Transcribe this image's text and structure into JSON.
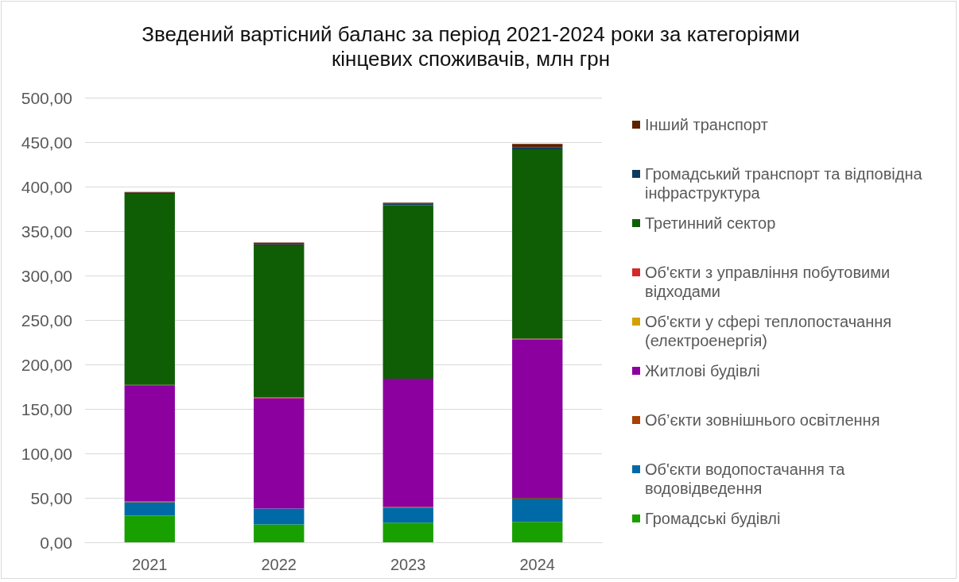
{
  "chart_data": {
    "type": "bar",
    "title": "Зведений вартісний баланс за період 2021-2024 роки за категоріями кінцевих споживачів, млн грн",
    "categories": [
      "2021",
      "2022",
      "2023",
      "2024"
    ],
    "stacked": true,
    "series": [
      {
        "name": "Громадські будівлі",
        "color": "#18a000",
        "values": [
          30,
          20,
          22,
          23
        ]
      },
      {
        "name": "Об'єкти водопостачання та водовідведення",
        "color": "#006aa6",
        "values": [
          15,
          18,
          17,
          26
        ]
      },
      {
        "name": "Об’єкти зовнішнього освітлення",
        "color": "#a84000",
        "values": [
          1,
          0,
          1,
          1
        ]
      },
      {
        "name": "Житлові будівлі",
        "color": "#8c00a0",
        "values": [
          130,
          124,
          144,
          178
        ]
      },
      {
        "name": "Об'єкти у сфері теплопостачання (електроенергія)",
        "color": "#d4a000",
        "values": [
          0,
          0,
          0,
          0
        ]
      },
      {
        "name": "Об'єкти з управління побутовими відходами",
        "color": "#d42a2a",
        "values": [
          1,
          1,
          0,
          1
        ]
      },
      {
        "name": "Третинний сектор",
        "color": "#0f5e05",
        "values": [
          215,
          171,
          195,
          213
        ]
      },
      {
        "name": "Громадський транспорт та відповідна інфраструктура",
        "color": "#0c3b5e",
        "values": [
          1,
          1,
          2,
          2
        ]
      },
      {
        "name": "Інший транспорт",
        "color": "#5b2200",
        "values": [
          1,
          2,
          1,
          4
        ]
      }
    ],
    "ylim": [
      0,
      500
    ],
    "yticks": [
      {
        "value": 0,
        "label": "0,00"
      },
      {
        "value": 50,
        "label": "50,00"
      },
      {
        "value": 100,
        "label": "100,00"
      },
      {
        "value": 150,
        "label": "150,00"
      },
      {
        "value": 200,
        "label": "200,00"
      },
      {
        "value": 250,
        "label": "250,00"
      },
      {
        "value": 300,
        "label": "300,00"
      },
      {
        "value": 350,
        "label": "350,00"
      },
      {
        "value": 400,
        "label": "400,00"
      },
      {
        "value": 450,
        "label": "450,00"
      },
      {
        "value": 500,
        "label": "500,00"
      }
    ],
    "grid": "y",
    "legend": "right"
  }
}
